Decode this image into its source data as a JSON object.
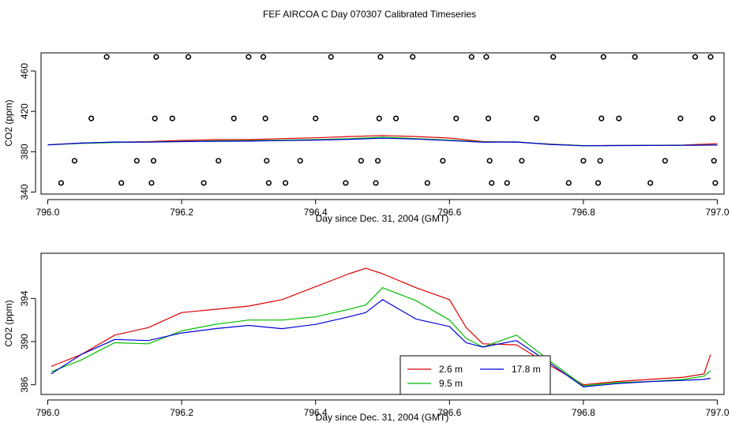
{
  "chart_data": [
    {
      "type": "line",
      "title": "FEF AIRCOA C  Day 070307  Calibrated Timeseries",
      "xlabel": "Day since Dec. 31, 2004 (GMT)",
      "ylabel": "CO2 (ppm)",
      "xlim": [
        795.99,
        797.01
      ],
      "ylim": [
        338,
        478
      ],
      "x_ticks": [
        796.0,
        796.2,
        796.4,
        796.6,
        796.8,
        797.0
      ],
      "x_tick_labels": [
        "796.0",
        "796.2",
        "796.4",
        "796.6",
        "796.8",
        "797.0"
      ],
      "y_ticks": [
        340,
        380,
        420,
        460
      ],
      "y_tick_labels": [
        "340",
        "380",
        "420",
        "460"
      ],
      "series": [
        {
          "name": "2.6 m",
          "color": "#dd0000",
          "x": [
            796.0,
            796.05,
            796.1,
            796.15,
            796.2,
            796.25,
            796.3,
            796.35,
            796.4,
            796.45,
            796.5,
            796.55,
            796.6,
            796.65,
            796.7,
            796.75,
            796.8,
            796.85,
            796.9,
            796.95,
            797.0
          ],
          "y": [
            386.8,
            388.6,
            389.4,
            390.0,
            391.2,
            392.0,
            392.0,
            393.0,
            393.8,
            395.0,
            396.0,
            395.0,
            393.5,
            390.0,
            389.5,
            387.6,
            386.0,
            386.2,
            386.3,
            386.6,
            388.0
          ]
        },
        {
          "name": "9.5 m",
          "color": "#00bb00",
          "x": [
            796.0,
            796.05,
            796.1,
            796.15,
            796.2,
            796.25,
            796.3,
            796.35,
            796.4,
            796.45,
            796.5,
            796.55,
            796.6,
            796.65,
            796.7,
            796.75,
            796.8,
            796.85,
            796.9,
            796.95,
            797.0
          ],
          "y": [
            386.9,
            388.2,
            389.1,
            389.6,
            390.2,
            390.8,
            391.0,
            391.5,
            392.0,
            392.8,
            394.5,
            393.0,
            391.5,
            389.6,
            389.8,
            387.4,
            386.0,
            386.1,
            386.2,
            386.4,
            386.6
          ]
        },
        {
          "name": "17.8 m",
          "color": "#0000dd",
          "x": [
            796.0,
            796.05,
            796.1,
            796.15,
            796.2,
            796.25,
            796.3,
            796.35,
            796.4,
            796.45,
            796.5,
            796.55,
            796.6,
            796.65,
            796.7,
            796.75,
            796.8,
            796.85,
            796.9,
            796.95,
            797.0
          ],
          "y": [
            386.8,
            388.5,
            389.6,
            389.5,
            390.0,
            390.3,
            390.5,
            391.0,
            391.5,
            392.3,
            393.4,
            392.5,
            391.0,
            389.4,
            389.6,
            387.2,
            385.9,
            386.1,
            386.2,
            386.3,
            386.6
          ]
        }
      ],
      "flagged_points": {
        "x": [
          796.02,
          796.04,
          796.065,
          796.088,
          796.11,
          796.133,
          796.155,
          796.158,
          796.16,
          796.162,
          796.186,
          796.21,
          796.233,
          796.255,
          796.278,
          796.3,
          796.322,
          796.325,
          796.327,
          796.33,
          796.355,
          796.377,
          796.4,
          796.423,
          796.445,
          796.468,
          796.49,
          796.493,
          796.495,
          796.497,
          796.52,
          796.545,
          796.567,
          796.59,
          796.61,
          796.633,
          796.655,
          796.658,
          796.66,
          796.663,
          796.686,
          796.708,
          796.73,
          796.755,
          796.778,
          796.8,
          796.822,
          796.825,
          796.827,
          796.83,
          796.853,
          796.877,
          796.9,
          796.922,
          796.945,
          796.967,
          796.99,
          796.993,
          796.995,
          796.997
        ],
        "y": [
          349,
          371,
          413,
          474,
          349,
          371,
          349,
          371,
          413,
          474,
          413,
          474,
          349,
          371,
          413,
          474,
          474,
          413,
          371,
          349,
          349,
          371,
          413,
          474,
          349,
          371,
          349,
          371,
          413,
          474,
          413,
          474,
          349,
          371,
          413,
          474,
          474,
          413,
          371,
          349,
          349,
          371,
          413,
          474,
          349,
          371,
          349,
          371,
          413,
          474,
          413,
          474,
          349,
          371,
          413,
          474,
          474,
          413,
          371,
          349
        ]
      }
    },
    {
      "type": "line",
      "xlabel": "Day since Dec. 31, 2004 (GMT)",
      "ylabel": "CO2 (ppm)",
      "xlim": [
        795.99,
        797.01
      ],
      "ylim": [
        385.1,
        398.2
      ],
      "x_ticks": [
        796.0,
        796.2,
        796.4,
        796.6,
        796.8,
        797.0
      ],
      "x_tick_labels": [
        "796.0",
        "796.2",
        "796.4",
        "796.6",
        "796.8",
        "797.0"
      ],
      "y_ticks": [
        386,
        390,
        394
      ],
      "y_tick_labels": [
        "386",
        "390",
        "394"
      ],
      "legend_position": "bottom-center",
      "series": [
        {
          "name": "2.6 m",
          "color": "#dd0000",
          "x": [
            796.005,
            796.05,
            796.1,
            796.15,
            796.2,
            796.25,
            796.3,
            796.35,
            796.4,
            796.45,
            796.475,
            796.5,
            796.55,
            796.6,
            796.625,
            796.65,
            796.7,
            796.75,
            796.8,
            796.85,
            796.9,
            796.95,
            796.98,
            796.99
          ],
          "y": [
            387.7,
            388.8,
            390.6,
            391.3,
            392.7,
            393.0,
            393.3,
            393.9,
            395.1,
            396.3,
            396.8,
            396.3,
            395.0,
            393.9,
            391.3,
            389.8,
            389.7,
            387.8,
            386.0,
            386.3,
            386.5,
            386.7,
            387.0,
            388.8
          ]
        },
        {
          "name": "9.5 m",
          "color": "#00bb00",
          "x": [
            796.005,
            796.05,
            796.1,
            796.15,
            796.2,
            796.25,
            796.3,
            796.35,
            796.4,
            796.45,
            796.475,
            796.5,
            796.55,
            796.6,
            796.625,
            796.65,
            796.7,
            796.75,
            796.8,
            796.85,
            796.9,
            796.95,
            796.98,
            796.99
          ],
          "y": [
            387.2,
            388.3,
            389.9,
            389.8,
            391.0,
            391.6,
            392.0,
            392.0,
            392.3,
            393.0,
            393.4,
            395.0,
            393.8,
            392.0,
            390.3,
            389.5,
            390.6,
            388.2,
            385.9,
            386.2,
            386.3,
            386.5,
            386.8,
            387.3
          ]
        },
        {
          "name": "17.8 m",
          "color": "#0000dd",
          "x": [
            796.005,
            796.05,
            796.1,
            796.15,
            796.2,
            796.25,
            796.3,
            796.35,
            796.4,
            796.45,
            796.475,
            796.5,
            796.55,
            796.6,
            796.625,
            796.65,
            796.7,
            796.75,
            796.8,
            796.85,
            796.9,
            796.95,
            796.98,
            796.99
          ],
          "y": [
            387.0,
            388.8,
            390.2,
            390.1,
            390.8,
            391.2,
            391.5,
            391.2,
            391.6,
            392.3,
            392.7,
            393.9,
            392.1,
            391.4,
            389.9,
            389.5,
            390.1,
            388.0,
            385.8,
            386.1,
            386.3,
            386.4,
            386.5,
            386.6
          ]
        }
      ],
      "legend": [
        "2.6 m",
        "9.5 m",
        "17.8 m"
      ]
    }
  ]
}
